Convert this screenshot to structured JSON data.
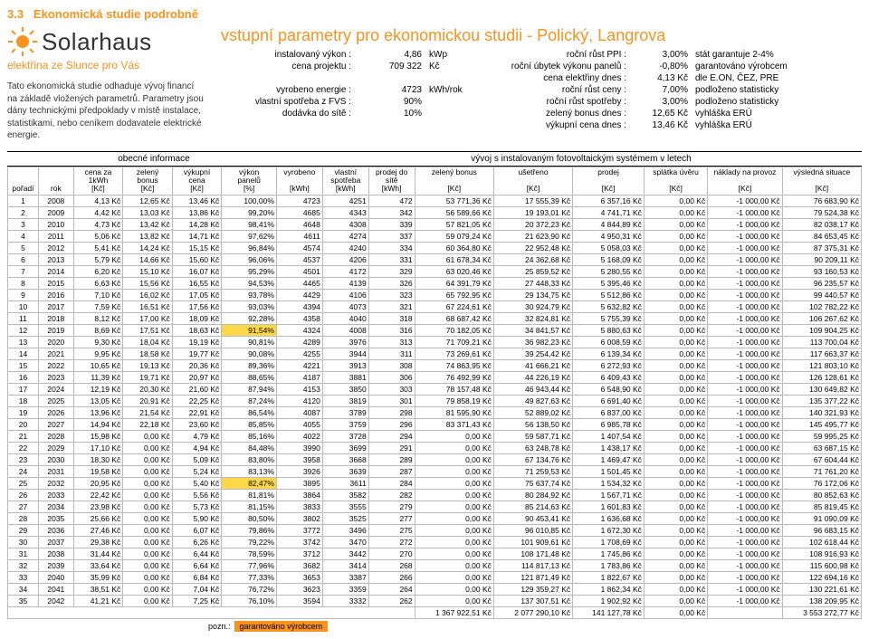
{
  "section_num": "3.3",
  "section_title": "Ekonomická studie podrobně",
  "brand": {
    "name": "Solarhaus",
    "tagline": "elektřina ze Slunce pro Vás"
  },
  "intro": "Tato ekonomická studie odhaduje vývoj financí na základě vložených parametrů. Parametry jsou dány technickými předpoklady v místě instalace, statistikami, nebo ceníkem dodavatele elektrické energie.",
  "params_title": "vstupní parametry pro ekonomickou studii - Polický, Langrova",
  "params": [
    {
      "l": "instalovaný výkon :",
      "v": "4,86",
      "u": "kWp",
      "l2": "roční růst PPI :",
      "v2": "3,00%",
      "n": "stát garantuje 2-4%"
    },
    {
      "l": "cena projektu :",
      "v": "709 322",
      "u": "Kč",
      "l2": "roční úbytek výkonu panelů :",
      "v2": "-0,80%",
      "n": "garantováno výrobcem"
    },
    {
      "l": "",
      "v": "",
      "u": "",
      "l2": "cena elektřiny dnes :",
      "v2": "4,13 Kč",
      "n": "dle E.ON, ČEZ, PRE"
    },
    {
      "l": "vyrobeno energie :",
      "v": "4723",
      "u": "kWh/rok",
      "l2": "roční růst ceny :",
      "v2": "7,00%",
      "n": "podloženo statisticky"
    },
    {
      "l": "vlastní spotřeba z FVS :",
      "v": "90%",
      "u": "",
      "l2": "roční růst spotřeby :",
      "v2": "3,00%",
      "n": "podloženo statisticky"
    },
    {
      "l": "dodávka do sítě :",
      "v": "10%",
      "u": "",
      "l2": "zelený bonus dnes :",
      "v2": "12,65 Kč",
      "n": "vyhláška ERÚ"
    },
    {
      "l": "",
      "v": "",
      "u": "",
      "l2": "výkupní cena dnes :",
      "v2": "13,46 Kč",
      "n": "vyhláška ERÚ"
    }
  ],
  "legend_left": "obecné informace",
  "legend_right": "vývoj s instalovaným fotovoltaickým systémem v letech",
  "headers": [
    "pořadí",
    "rok",
    "cena za\n1kWh\n[Kč]",
    "zelený\nbonus\n[Kč]",
    "výkupní\ncena\n[Kč]",
    "výkon\npanelů\n[%]",
    "vyrobeno\n\n[kWh]",
    "vlastní\nspotřeba\n[kWh]",
    "prodej do\nsítě\n[kWh]",
    "zelený bonus\n\n[Kč]",
    "ušetřeno\n\n[Kč]",
    "prodej\n\n[Kč]",
    "splátka úvěru\n\n[Kč]",
    "náklady na provoz\n\n[Kč]",
    "výsledná situace\n\n[Kč]"
  ],
  "rows": [
    [
      "1",
      "2008",
      "4,13 Kč",
      "12,65 Kč",
      "13,46 Kč",
      "100,00%",
      "4723",
      "4251",
      "472",
      "53 771,36 Kč",
      "17 555,39 Kč",
      "6 357,16 Kč",
      "0,00 Kč",
      "-1 000,00 Kč",
      "76 683,90 Kč"
    ],
    [
      "2",
      "2009",
      "4,42 Kč",
      "13,03 Kč",
      "13,86 Kč",
      "99,20%",
      "4685",
      "4343",
      "342",
      "56 589,66 Kč",
      "19 193,01 Kč",
      "4 741,71 Kč",
      "0,00 Kč",
      "-1 000,00 Kč",
      "79 524,38 Kč"
    ],
    [
      "3",
      "2010",
      "4,73 Kč",
      "13,42 Kč",
      "14,28 Kč",
      "98,41%",
      "4648",
      "4308",
      "339",
      "57 821,05 Kč",
      "20 372,23 Kč",
      "4 844,89 Kč",
      "0,00 Kč",
      "-1 000,00 Kč",
      "82 038,17 Kč"
    ],
    [
      "4",
      "2011",
      "5,06 Kč",
      "13,82 Kč",
      "14,71 Kč",
      "97,62%",
      "4611",
      "4274",
      "337",
      "59 079,24 Kč",
      "21 623,90 Kč",
      "4 950,31 Kč",
      "0,00 Kč",
      "-1 000,00 Kč",
      "84 653,45 Kč"
    ],
    [
      "5",
      "2012",
      "5,41 Kč",
      "14,24 Kč",
      "15,15 Kč",
      "96,84%",
      "4574",
      "4240",
      "334",
      "60 364,80 Kč",
      "22 952,48 Kč",
      "5 058,03 Kč",
      "0,00 Kč",
      "-1 000,00 Kč",
      "87 375,31 Kč"
    ],
    [
      "6",
      "2013",
      "5,79 Kč",
      "14,66 Kč",
      "15,60 Kč",
      "96,06%",
      "4537",
      "4206",
      "331",
      "61 678,34 Kč",
      "24 362,68 Kč",
      "5 168,09 Kč",
      "0,00 Kč",
      "-1 000,00 Kč",
      "90 209,11 Kč"
    ],
    [
      "7",
      "2014",
      "6,20 Kč",
      "15,10 Kč",
      "16,07 Kč",
      "95,29%",
      "4501",
      "4172",
      "329",
      "63 020,46 Kč",
      "25 859,52 Kč",
      "5 280,55 Kč",
      "0,00 Kč",
      "-1 000,00 Kč",
      "93 160,53 Kč"
    ],
    [
      "8",
      "2015",
      "6,63 Kč",
      "15,56 Kč",
      "16,55 Kč",
      "94,53%",
      "4465",
      "4139",
      "326",
      "64 391,79 Kč",
      "27 448,33 Kč",
      "5 395,46 Kč",
      "0,00 Kč",
      "-1 000,00 Kč",
      "96 235,57 Kč"
    ],
    [
      "9",
      "2016",
      "7,10 Kč",
      "16,02 Kč",
      "17,05 Kč",
      "93,78%",
      "4429",
      "4106",
      "323",
      "65 792,95 Kč",
      "29 134,75 Kč",
      "5 512,86 Kč",
      "0,00 Kč",
      "-1 000,00 Kč",
      "99 440,57 Kč"
    ],
    [
      "10",
      "2017",
      "7,59 Kč",
      "16,51 Kč",
      "17,56 Kč",
      "93,03%",
      "4394",
      "4073",
      "321",
      "67 224,61 Kč",
      "30 924,79 Kč",
      "5 632,82 Kč",
      "0,00 Kč",
      "-1 000,00 Kč",
      "102 782,22 Kč"
    ],
    [
      "11",
      "2018",
      "8,12 Kč",
      "17,00 Kč",
      "18,09 Kč",
      "92,28%",
      "4358",
      "4040",
      "318",
      "68 687,42 Kč",
      "32 824,81 Kč",
      "5 755,39 Kč",
      "0,00 Kč",
      "-1 000,00 Kč",
      "106 267,62 Kč"
    ],
    [
      "12",
      "2019",
      "8,69 Kč",
      "17,51 Kč",
      "18,63 Kč",
      "91,54%",
      "4324",
      "4008",
      "316",
      "70 182,05 Kč",
      "34 841,57 Kč",
      "5 880,63 Kč",
      "0,00 Kč",
      "-1 000,00 Kč",
      "109 904,25 Kč",
      "hlp"
    ],
    [
      "13",
      "2020",
      "9,30 Kč",
      "18,04 Kč",
      "19,19 Kč",
      "90,81%",
      "4289",
      "3976",
      "313",
      "71 709,21 Kč",
      "36 982,23 Kč",
      "6 008,59 Kč",
      "0,00 Kč",
      "-1 000,00 Kč",
      "113 700,04 Kč"
    ],
    [
      "14",
      "2021",
      "9,95 Kč",
      "18,58 Kč",
      "19,77 Kč",
      "90,08%",
      "4255",
      "3944",
      "311",
      "73 269,61 Kč",
      "39 254,42 Kč",
      "6 139,34 Kč",
      "0,00 Kč",
      "-1 000,00 Kč",
      "117 663,37 Kč"
    ],
    [
      "15",
      "2022",
      "10,65 Kč",
      "19,13 Kč",
      "20,36 Kč",
      "89,36%",
      "4221",
      "3913",
      "308",
      "74 863,95 Kč",
      "41 666,21 Kč",
      "6 272,93 Kč",
      "0,00 Kč",
      "-1 000,00 Kč",
      "121 803,10 Kč"
    ],
    [
      "16",
      "2023",
      "11,39 Kč",
      "19,71 Kč",
      "20,97 Kč",
      "88,65%",
      "4187",
      "3881",
      "306",
      "76 492,99 Kč",
      "44 226,19 Kč",
      "6 409,43 Kč",
      "0,00 Kč",
      "-1 000,00 Kč",
      "126 128,61 Kč"
    ],
    [
      "17",
      "2024",
      "12,19 Kč",
      "20,30 Kč",
      "21,60 Kč",
      "87,94%",
      "4153",
      "3850",
      "303",
      "78 157,48 Kč",
      "46 943,44 Kč",
      "6 548,90 Kč",
      "0,00 Kč",
      "-1 000,00 Kč",
      "130 649,82 Kč"
    ],
    [
      "18",
      "2025",
      "13,05 Kč",
      "20,91 Kč",
      "22,25 Kč",
      "87,24%",
      "4120",
      "3819",
      "301",
      "79 858,19 Kč",
      "49 827,63 Kč",
      "6 691,40 Kč",
      "0,00 Kč",
      "-1 000,00 Kč",
      "135 377,22 Kč"
    ],
    [
      "19",
      "2026",
      "13,96 Kč",
      "21,54 Kč",
      "22,91 Kč",
      "86,54%",
      "4087",
      "3789",
      "298",
      "81 595,90 Kč",
      "52 889,02 Kč",
      "6 837,00 Kč",
      "0,00 Kč",
      "-1 000,00 Kč",
      "140 321,93 Kč"
    ],
    [
      "20",
      "2027",
      "14,94 Kč",
      "22,18 Kč",
      "23,60 Kč",
      "85,85%",
      "4055",
      "3759",
      "296",
      "83 371,43 Kč",
      "56 138,50 Kč",
      "6 985,78 Kč",
      "0,00 Kč",
      "-1 000,00 Kč",
      "145 495,77 Kč"
    ],
    [
      "21",
      "2028",
      "15,98 Kč",
      "0,00 Kč",
      "4,79 Kč",
      "85,16%",
      "4022",
      "3728",
      "294",
      "0,00 Kč",
      "59 587,71 Kč",
      "1 407,54 Kč",
      "0,00 Kč",
      "-1 000,00 Kč",
      "59 995,25 Kč"
    ],
    [
      "22",
      "2029",
      "17,10 Kč",
      "0,00 Kč",
      "4,94 Kč",
      "84,48%",
      "3990",
      "3699",
      "291",
      "0,00 Kč",
      "63 248,78 Kč",
      "1 438,17 Kč",
      "0,00 Kč",
      "-1 000,00 Kč",
      "63 687,15 Kč"
    ],
    [
      "23",
      "2030",
      "18,30 Kč",
      "0,00 Kč",
      "5,09 Kč",
      "83,80%",
      "3958",
      "3668",
      "289",
      "0,00 Kč",
      "67 134,76 Kč",
      "1 469,47 Kč",
      "0,00 Kč",
      "-1 000,00 Kč",
      "67 604,44 Kč"
    ],
    [
      "24",
      "2031",
      "19,58 Kč",
      "0,00 Kč",
      "5,24 Kč",
      "83,13%",
      "3926",
      "3639",
      "287",
      "0,00 Kč",
      "71 259,53 Kč",
      "1 501,45 Kč",
      "0,00 Kč",
      "-1 000,00 Kč",
      "71 761,20 Kč"
    ],
    [
      "25",
      "2032",
      "20,95 Kč",
      "0,00 Kč",
      "5,40 Kč",
      "82,47%",
      "3895",
      "3611",
      "284",
      "0,00 Kč",
      "75 637,74 Kč",
      "1 534,32 Kč",
      "0,00 Kč",
      "-1 000,00 Kč",
      "76 172,06 Kč",
      "hlp"
    ],
    [
      "26",
      "2033",
      "22,42 Kč",
      "0,00 Kč",
      "5,56 Kč",
      "81,81%",
      "3864",
      "3582",
      "282",
      "0,00 Kč",
      "80 284,92 Kč",
      "1 567,71 Kč",
      "0,00 Kč",
      "-1 000,00 Kč",
      "80 852,63 Kč"
    ],
    [
      "27",
      "2034",
      "23,98 Kč",
      "0,00 Kč",
      "5,73 Kč",
      "81,15%",
      "3833",
      "3555",
      "279",
      "0,00 Kč",
      "85 214,63 Kč",
      "1 601,83 Kč",
      "0,00 Kč",
      "-1 000,00 Kč",
      "85 819,45 Kč"
    ],
    [
      "28",
      "2035",
      "25,66 Kč",
      "0,00 Kč",
      "5,90 Kč",
      "80,50%",
      "3802",
      "3525",
      "277",
      "0,00 Kč",
      "90 453,41 Kč",
      "1 636,68 Kč",
      "0,00 Kč",
      "-1 000,00 Kč",
      "91 090,09 Kč"
    ],
    [
      "29",
      "2036",
      "27,46 Kč",
      "0,00 Kč",
      "6,07 Kč",
      "79,86%",
      "3772",
      "3496",
      "275",
      "0,00 Kč",
      "96 010,85 Kč",
      "1 672,30 Kč",
      "0,00 Kč",
      "-1 000,00 Kč",
      "96 683,15 Kč"
    ],
    [
      "30",
      "2037",
      "29,38 Kč",
      "0,00 Kč",
      "6,26 Kč",
      "79,22%",
      "3742",
      "3470",
      "272",
      "0,00 Kč",
      "101 909,61 Kč",
      "1 708,69 Kč",
      "0,00 Kč",
      "-1 000,00 Kč",
      "102 618,44 Kč"
    ],
    [
      "31",
      "2038",
      "31,44 Kč",
      "0,00 Kč",
      "6,44 Kč",
      "78,59%",
      "3712",
      "3442",
      "270",
      "0,00 Kč",
      "108 171,48 Kč",
      "1 745,86 Kč",
      "0,00 Kč",
      "-1 000,00 Kč",
      "108 916,93 Kč"
    ],
    [
      "32",
      "2039",
      "33,64 Kč",
      "0,00 Kč",
      "6,64 Kč",
      "77,96%",
      "3682",
      "3414",
      "268",
      "0,00 Kč",
      "114 817,13 Kč",
      "1 783,86 Kč",
      "0,00 Kč",
      "-1 000,00 Kč",
      "115 600,98 Kč"
    ],
    [
      "33",
      "2040",
      "35,99 Kč",
      "0,00 Kč",
      "6,84 Kč",
      "77,33%",
      "3653",
      "3387",
      "266",
      "0,00 Kč",
      "121 871,49 Kč",
      "1 822,67 Kč",
      "0,00 Kč",
      "-1 000,00 Kč",
      "122 694,16 Kč"
    ],
    [
      "34",
      "2041",
      "38,51 Kč",
      "0,00 Kč",
      "7,04 Kč",
      "76,72%",
      "3623",
      "3359",
      "264",
      "0,00 Kč",
      "129 359,27 Kč",
      "1 862,34 Kč",
      "0,00 Kč",
      "-1 000,00 Kč",
      "130 221,61 Kč"
    ],
    [
      "35",
      "2042",
      "41,21 Kč",
      "0,00 Kč",
      "7,25 Kč",
      "76,10%",
      "3594",
      "3332",
      "262",
      "0,00 Kč",
      "137 307,51 Kč",
      "1 902,92 Kč",
      "0,00 Kč",
      "-1 000,00 Kč",
      "138 209,95 Kč"
    ]
  ],
  "totals": {
    "zb": "1 367 922,51 Kč",
    "us": "2 077 290,10 Kč",
    "pr": "141 127,78 Kč",
    "sp": "0,00 Kč",
    "np": "",
    "vs": "3 553 272,77 Kč"
  },
  "footer": {
    "label": "pozn.:",
    "value": "garantováno výrobcem"
  },
  "colors": {
    "orange": "#f7931e",
    "yellow": "#ffd84a"
  }
}
